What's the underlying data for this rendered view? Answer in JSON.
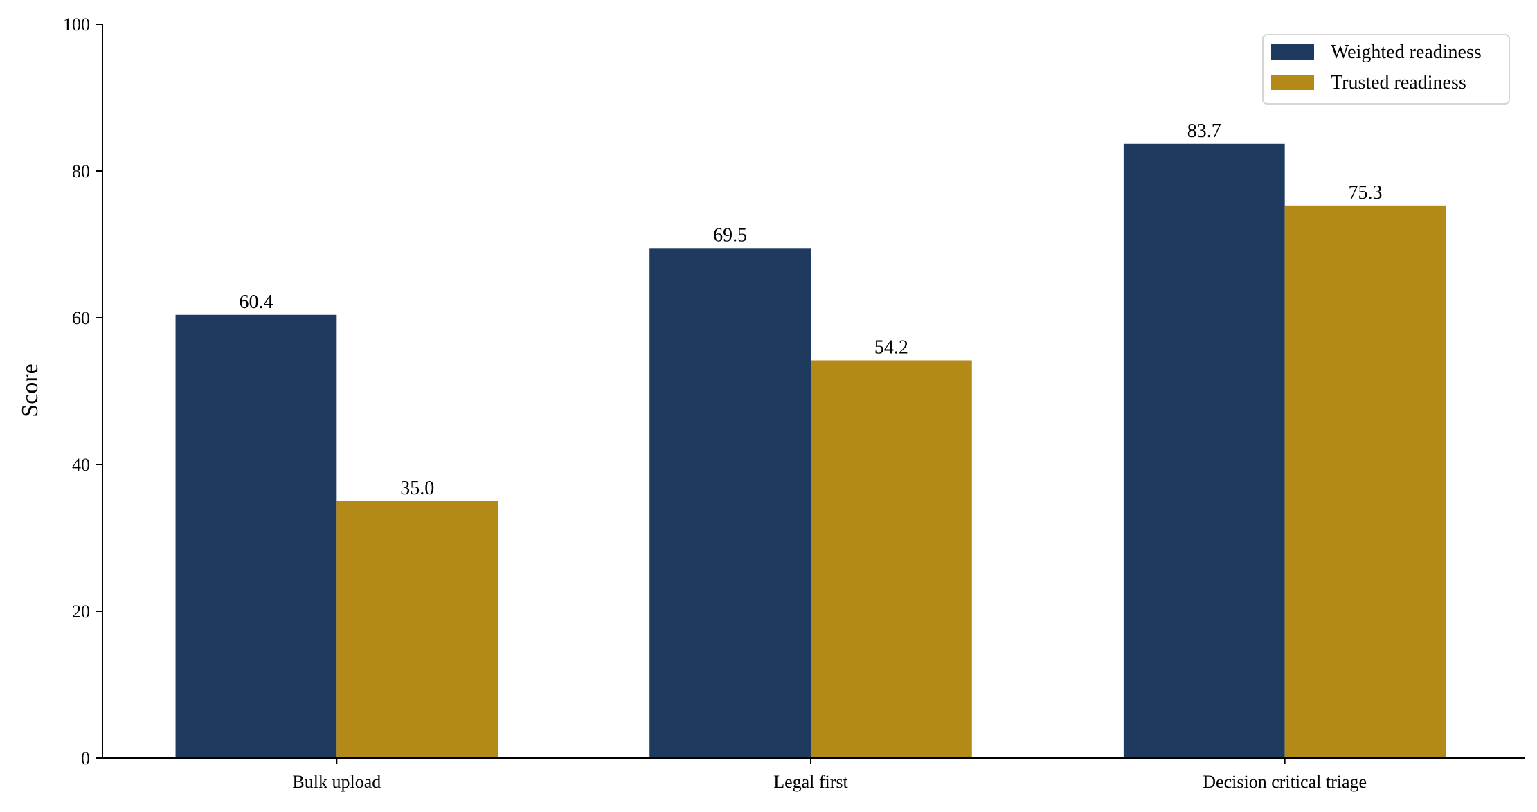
{
  "chart_data": {
    "type": "bar",
    "categories": [
      "Bulk upload",
      "Legal first",
      "Decision critical triage"
    ],
    "series": [
      {
        "name": "Weighted readiness",
        "color": "#1f3a5f",
        "values": [
          60.4,
          69.5,
          83.7
        ],
        "labels": [
          "60.4",
          "69.5",
          "83.7"
        ]
      },
      {
        "name": "Trusted readiness",
        "color": "#b38a17",
        "values": [
          35.0,
          54.2,
          75.3
        ],
        "labels": [
          "35.0",
          "54.2",
          "75.3"
        ]
      }
    ],
    "title": "",
    "xlabel": "",
    "ylabel": "Score",
    "ylim": [
      0,
      100
    ],
    "yticks": [
      0,
      20,
      40,
      60,
      80,
      100
    ],
    "grid": false,
    "legend": "top-right"
  }
}
